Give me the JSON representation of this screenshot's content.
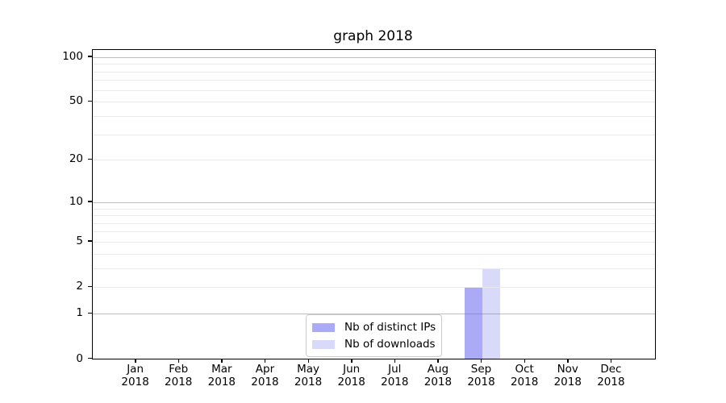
{
  "title": "graph 2018",
  "chart_data": {
    "type": "bar",
    "title": "graph 2018",
    "categories": [
      "Jan",
      "Feb",
      "Mar",
      "Apr",
      "May",
      "Jun",
      "Jul",
      "Aug",
      "Sep",
      "Oct",
      "Nov",
      "Dec"
    ],
    "x_ticks": [
      {
        "month": "Jan",
        "year": "2018"
      },
      {
        "month": "Feb",
        "year": "2018"
      },
      {
        "month": "Mar",
        "year": "2018"
      },
      {
        "month": "Apr",
        "year": "2018"
      },
      {
        "month": "May",
        "year": "2018"
      },
      {
        "month": "Jun",
        "year": "2018"
      },
      {
        "month": "Jul",
        "year": "2018"
      },
      {
        "month": "Aug",
        "year": "2018"
      },
      {
        "month": "Sep",
        "year": "2018"
      },
      {
        "month": "Oct",
        "year": "2018"
      },
      {
        "month": "Nov",
        "year": "2018"
      },
      {
        "month": "Dec",
        "year": "2018"
      }
    ],
    "series": [
      {
        "name": "Nb of distinct IPs",
        "color": "#aaaaf7",
        "values": [
          0,
          0,
          0,
          0,
          0,
          0,
          0,
          0,
          2,
          0,
          0,
          0
        ]
      },
      {
        "name": "Nb of downloads",
        "color": "#d9d9fa",
        "values": [
          0,
          0,
          0,
          0,
          0,
          0,
          0,
          0,
          3,
          0,
          0,
          0
        ]
      }
    ],
    "y_axis": {
      "scale": "log10(1+x)",
      "tick_labels": [
        "100",
        "50",
        "20",
        "10",
        "5",
        "2",
        "1",
        "0"
      ],
      "tick_values": [
        100,
        50,
        20,
        10,
        5,
        2,
        1,
        0
      ],
      "major_gridlines": [
        100,
        10,
        1
      ],
      "minor_gridlines": [
        90,
        80,
        70,
        60,
        50,
        40,
        30,
        20,
        9,
        8,
        7,
        6,
        5,
        4,
        3,
        2
      ],
      "ylim": [
        0,
        112
      ]
    },
    "legend": {
      "position": "lower center",
      "items": [
        "Nb of distinct IPs",
        "Nb of downloads"
      ]
    },
    "grid": true
  },
  "colors": {
    "background": "#ffffff",
    "axis_border": "#000000",
    "text": "#000000",
    "grid_minor": "#e9e9e9",
    "grid_major": "#6e6e6e",
    "legend_border": "#cccccc",
    "bar_distinct_ips": "#aaaaf7",
    "bar_downloads": "#d9d9fa"
  }
}
